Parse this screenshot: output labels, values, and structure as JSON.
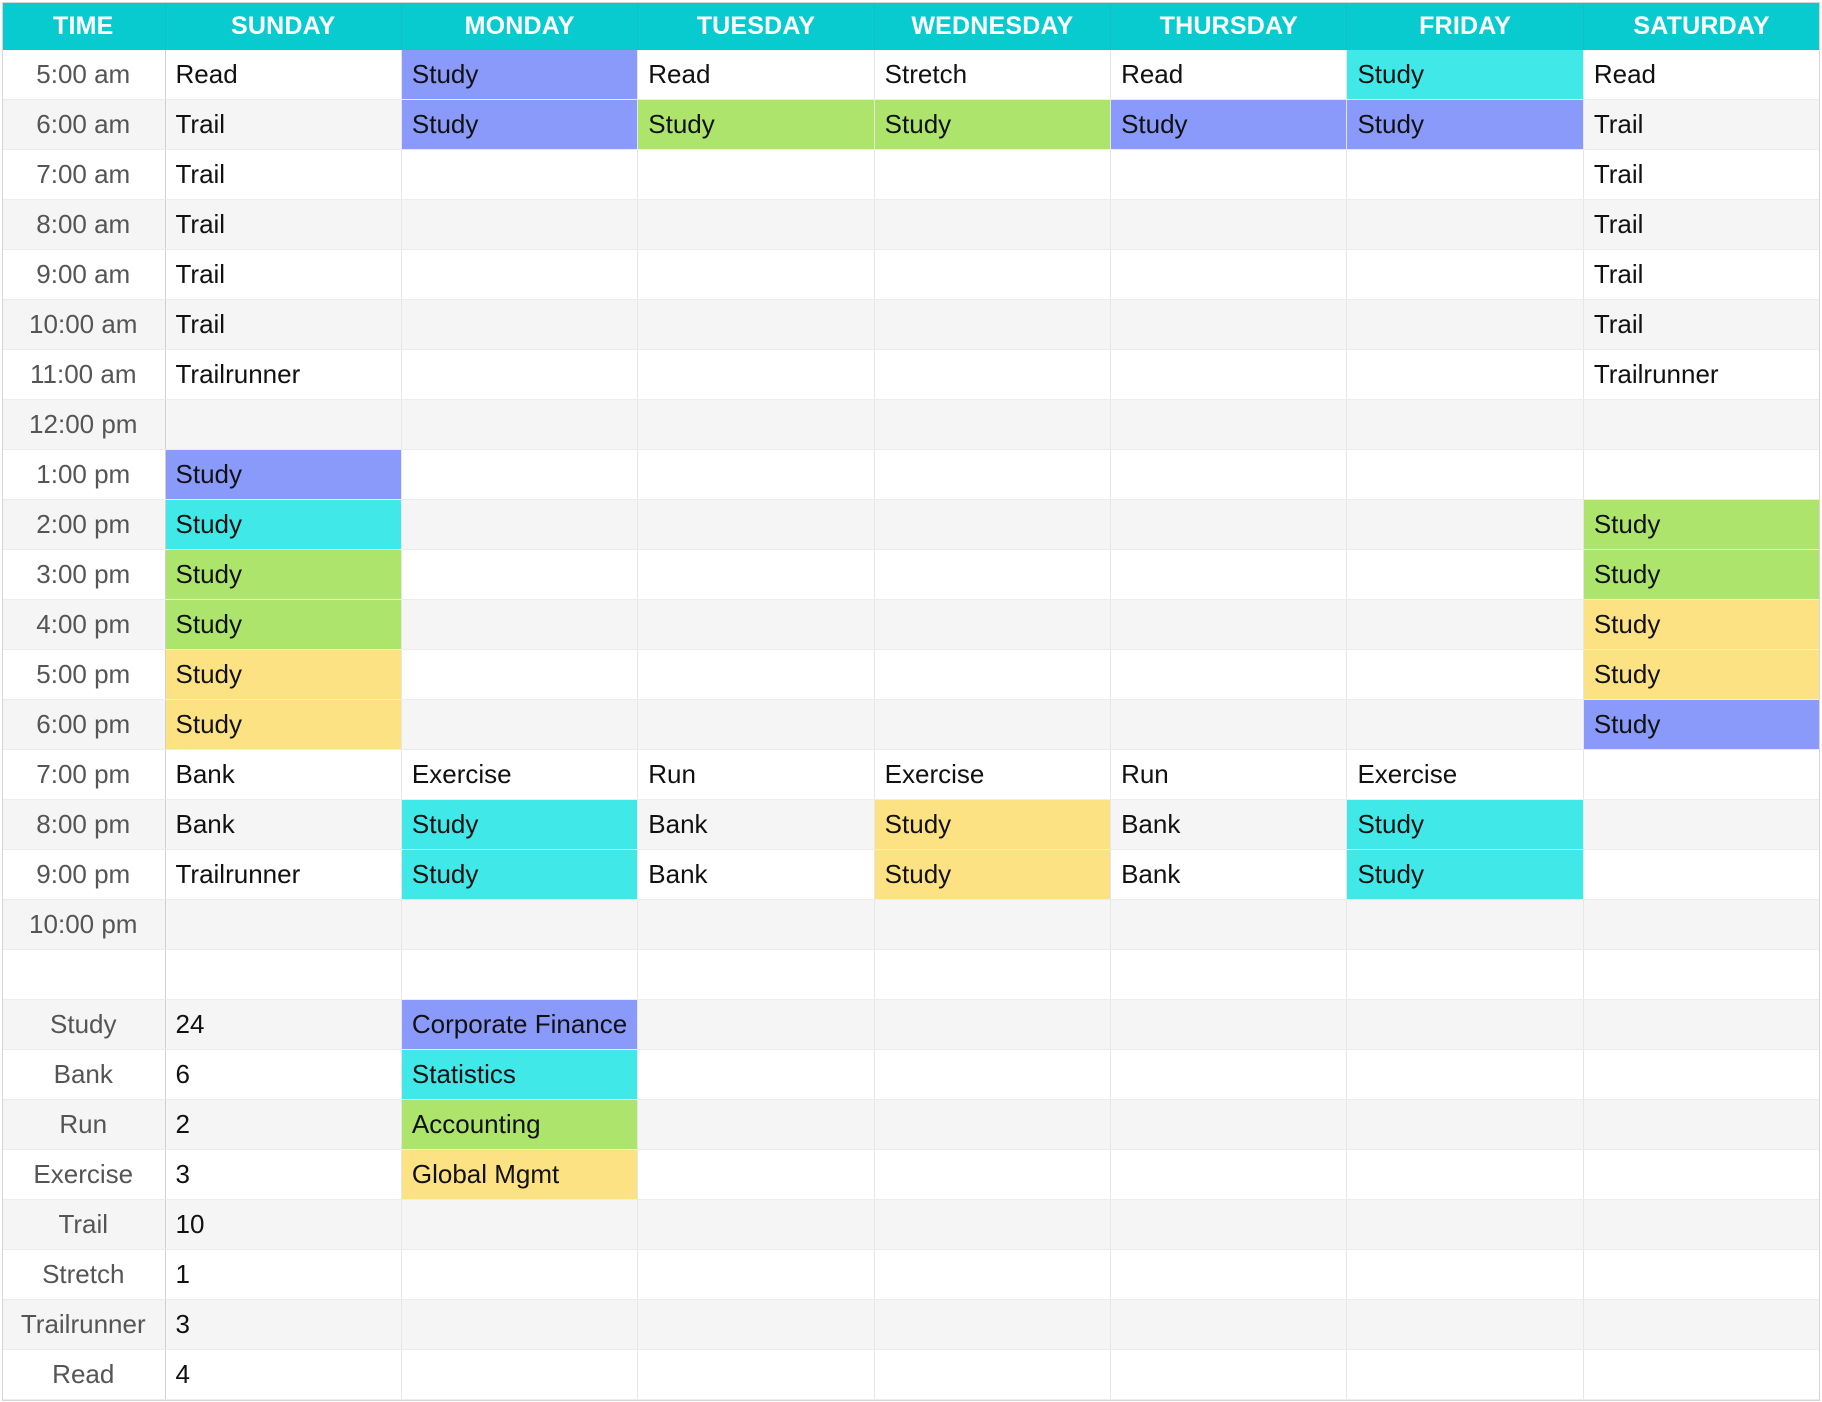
{
  "colors": {
    "header": "#08cbd0",
    "blue": "#8a9afb",
    "cyan": "#40e8e8",
    "green": "#ade46b",
    "yellow": "#fde283"
  },
  "header": [
    "TIME",
    "SUNDAY",
    "MONDAY",
    "TUESDAY",
    "WEDNESDAY",
    "THURSDAY",
    "FRIDAY",
    "SATURDAY"
  ],
  "rows": [
    {
      "time": "5:00 am",
      "cells": [
        {
          "t": "Read"
        },
        {
          "t": "Study",
          "c": "blue"
        },
        {
          "t": "Read"
        },
        {
          "t": "Stretch"
        },
        {
          "t": "Read"
        },
        {
          "t": "Study",
          "c": "cyan"
        },
        {
          "t": "Read"
        }
      ]
    },
    {
      "time": "6:00 am",
      "cells": [
        {
          "t": "Trail"
        },
        {
          "t": "Study",
          "c": "blue"
        },
        {
          "t": "Study",
          "c": "green"
        },
        {
          "t": "Study",
          "c": "green"
        },
        {
          "t": "Study",
          "c": "blue"
        },
        {
          "t": "Study",
          "c": "blue"
        },
        {
          "t": "Trail"
        }
      ]
    },
    {
      "time": "7:00 am",
      "cells": [
        {
          "t": "Trail"
        },
        {
          "t": ""
        },
        {
          "t": ""
        },
        {
          "t": ""
        },
        {
          "t": ""
        },
        {
          "t": ""
        },
        {
          "t": "Trail"
        }
      ]
    },
    {
      "time": "8:00 am",
      "cells": [
        {
          "t": "Trail"
        },
        {
          "t": ""
        },
        {
          "t": ""
        },
        {
          "t": ""
        },
        {
          "t": ""
        },
        {
          "t": ""
        },
        {
          "t": "Trail"
        }
      ]
    },
    {
      "time": "9:00 am",
      "cells": [
        {
          "t": "Trail"
        },
        {
          "t": ""
        },
        {
          "t": ""
        },
        {
          "t": ""
        },
        {
          "t": ""
        },
        {
          "t": ""
        },
        {
          "t": "Trail"
        }
      ]
    },
    {
      "time": "10:00 am",
      "cells": [
        {
          "t": "Trail"
        },
        {
          "t": ""
        },
        {
          "t": ""
        },
        {
          "t": ""
        },
        {
          "t": ""
        },
        {
          "t": ""
        },
        {
          "t": "Trail"
        }
      ]
    },
    {
      "time": "11:00 am",
      "cells": [
        {
          "t": "Trailrunner"
        },
        {
          "t": ""
        },
        {
          "t": ""
        },
        {
          "t": ""
        },
        {
          "t": ""
        },
        {
          "t": ""
        },
        {
          "t": "Trailrunner"
        }
      ]
    },
    {
      "time": "12:00 pm",
      "cells": [
        {
          "t": ""
        },
        {
          "t": ""
        },
        {
          "t": ""
        },
        {
          "t": ""
        },
        {
          "t": ""
        },
        {
          "t": ""
        },
        {
          "t": ""
        }
      ]
    },
    {
      "time": "1:00 pm",
      "cells": [
        {
          "t": "Study",
          "c": "blue"
        },
        {
          "t": ""
        },
        {
          "t": ""
        },
        {
          "t": ""
        },
        {
          "t": ""
        },
        {
          "t": ""
        },
        {
          "t": ""
        }
      ]
    },
    {
      "time": "2:00 pm",
      "cells": [
        {
          "t": "Study",
          "c": "cyan"
        },
        {
          "t": ""
        },
        {
          "t": ""
        },
        {
          "t": ""
        },
        {
          "t": ""
        },
        {
          "t": ""
        },
        {
          "t": "Study",
          "c": "green"
        }
      ]
    },
    {
      "time": "3:00 pm",
      "cells": [
        {
          "t": "Study",
          "c": "green"
        },
        {
          "t": ""
        },
        {
          "t": ""
        },
        {
          "t": ""
        },
        {
          "t": ""
        },
        {
          "t": ""
        },
        {
          "t": "Study",
          "c": "green"
        }
      ]
    },
    {
      "time": "4:00 pm",
      "cells": [
        {
          "t": "Study",
          "c": "green"
        },
        {
          "t": ""
        },
        {
          "t": ""
        },
        {
          "t": ""
        },
        {
          "t": ""
        },
        {
          "t": ""
        },
        {
          "t": "Study",
          "c": "yellow"
        }
      ]
    },
    {
      "time": "5:00 pm",
      "cells": [
        {
          "t": "Study",
          "c": "yellow"
        },
        {
          "t": ""
        },
        {
          "t": ""
        },
        {
          "t": ""
        },
        {
          "t": ""
        },
        {
          "t": ""
        },
        {
          "t": "Study",
          "c": "yellow"
        }
      ]
    },
    {
      "time": "6:00 pm",
      "cells": [
        {
          "t": "Study",
          "c": "yellow"
        },
        {
          "t": ""
        },
        {
          "t": ""
        },
        {
          "t": ""
        },
        {
          "t": ""
        },
        {
          "t": ""
        },
        {
          "t": "Study",
          "c": "blue"
        }
      ]
    },
    {
      "time": "7:00 pm",
      "cells": [
        {
          "t": "Bank"
        },
        {
          "t": "Exercise"
        },
        {
          "t": "Run"
        },
        {
          "t": "Exercise"
        },
        {
          "t": "Run"
        },
        {
          "t": "Exercise"
        },
        {
          "t": ""
        }
      ]
    },
    {
      "time": "8:00 pm",
      "cells": [
        {
          "t": "Bank"
        },
        {
          "t": "Study",
          "c": "cyan"
        },
        {
          "t": "Bank"
        },
        {
          "t": "Study",
          "c": "yellow"
        },
        {
          "t": "Bank"
        },
        {
          "t": "Study",
          "c": "cyan"
        },
        {
          "t": ""
        }
      ]
    },
    {
      "time": "9:00 pm",
      "cells": [
        {
          "t": "Trailrunner"
        },
        {
          "t": "Study",
          "c": "cyan"
        },
        {
          "t": "Bank"
        },
        {
          "t": "Study",
          "c": "yellow"
        },
        {
          "t": "Bank"
        },
        {
          "t": "Study",
          "c": "cyan"
        },
        {
          "t": ""
        }
      ]
    },
    {
      "time": "10:00 pm",
      "cells": [
        {
          "t": ""
        },
        {
          "t": ""
        },
        {
          "t": ""
        },
        {
          "t": ""
        },
        {
          "t": ""
        },
        {
          "t": ""
        },
        {
          "t": ""
        }
      ]
    },
    {
      "time": "",
      "cells": [
        {
          "t": ""
        },
        {
          "t": ""
        },
        {
          "t": ""
        },
        {
          "t": ""
        },
        {
          "t": ""
        },
        {
          "t": ""
        },
        {
          "t": ""
        }
      ]
    },
    {
      "time": "Study",
      "cells": [
        {
          "t": "24"
        },
        {
          "t": "Corporate Finance",
          "c": "blue"
        },
        {
          "t": ""
        },
        {
          "t": ""
        },
        {
          "t": ""
        },
        {
          "t": ""
        },
        {
          "t": ""
        }
      ]
    },
    {
      "time": "Bank",
      "cells": [
        {
          "t": "6"
        },
        {
          "t": "Statistics",
          "c": "cyan"
        },
        {
          "t": ""
        },
        {
          "t": ""
        },
        {
          "t": ""
        },
        {
          "t": ""
        },
        {
          "t": ""
        }
      ]
    },
    {
      "time": "Run",
      "cells": [
        {
          "t": "2"
        },
        {
          "t": "Accounting",
          "c": "green"
        },
        {
          "t": ""
        },
        {
          "t": ""
        },
        {
          "t": ""
        },
        {
          "t": ""
        },
        {
          "t": ""
        }
      ]
    },
    {
      "time": "Exercise",
      "cells": [
        {
          "t": "3"
        },
        {
          "t": "Global Mgmt",
          "c": "yellow"
        },
        {
          "t": ""
        },
        {
          "t": ""
        },
        {
          "t": ""
        },
        {
          "t": ""
        },
        {
          "t": ""
        }
      ]
    },
    {
      "time": "Trail",
      "cells": [
        {
          "t": "10"
        },
        {
          "t": ""
        },
        {
          "t": ""
        },
        {
          "t": ""
        },
        {
          "t": ""
        },
        {
          "t": ""
        },
        {
          "t": ""
        }
      ]
    },
    {
      "time": "Stretch",
      "cells": [
        {
          "t": "1"
        },
        {
          "t": ""
        },
        {
          "t": ""
        },
        {
          "t": ""
        },
        {
          "t": ""
        },
        {
          "t": ""
        },
        {
          "t": ""
        }
      ]
    },
    {
      "time": "Trailrunner",
      "cells": [
        {
          "t": "3"
        },
        {
          "t": ""
        },
        {
          "t": ""
        },
        {
          "t": ""
        },
        {
          "t": ""
        },
        {
          "t": ""
        },
        {
          "t": ""
        }
      ]
    },
    {
      "time": "Read",
      "cells": [
        {
          "t": "4"
        },
        {
          "t": ""
        },
        {
          "t": ""
        },
        {
          "t": ""
        },
        {
          "t": ""
        },
        {
          "t": ""
        },
        {
          "t": ""
        }
      ]
    }
  ]
}
